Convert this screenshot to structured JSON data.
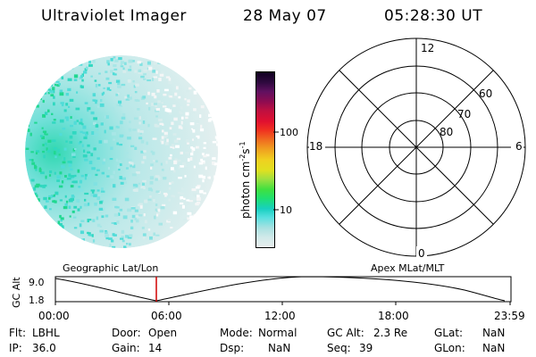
{
  "header": {
    "instrument": "Ultraviolet Imager",
    "date": "28 May 07",
    "time": "05:28:30 UT"
  },
  "colorbar": {
    "label": "photon cm",
    "label_exp": "-2",
    "label_unit": "s",
    "label_unit_exp": "-1",
    "tick_10": "10",
    "tick_100": "100",
    "colors": [
      "#e8eeee",
      "#cfe9e9",
      "#a9e1e1",
      "#58e0e0",
      "#18d0c0",
      "#20e070",
      "#40e040",
      "#a0e040",
      "#e0e020",
      "#f0d020",
      "#f0a020",
      "#f07020",
      "#f03020",
      "#e01030",
      "#c01040",
      "#900c50",
      "#601060",
      "#300a40",
      "#100020"
    ]
  },
  "polar_plot": {
    "labels": {
      "top": "12",
      "bottom": "0",
      "left": "18",
      "right": "6"
    },
    "ring_labels": [
      "80",
      "70",
      "60"
    ]
  },
  "timeline": {
    "axis_label": "GC Alt",
    "left_heading": "Geographic Lat/Lon",
    "right_heading": "Apex MLat/MLT",
    "y_ticks": [
      "9.0",
      "1.8"
    ],
    "x_ticks": [
      "00:00",
      "06:00",
      "12:00",
      "18:00",
      "23:59"
    ],
    "marker_color": "#d00000"
  },
  "status": {
    "flt_label": "Flt:",
    "flt_value": "LBHL",
    "ip_label": "IP:",
    "ip_value": "36.0",
    "door_label": "Door:",
    "door_value": "Open",
    "gain_label": "Gain:",
    "gain_value": "14",
    "mode_label": "Mode:",
    "mode_value": "Normal",
    "dsp_label": "Dsp:",
    "dsp_value": "NaN",
    "gcalt_label": "GC Alt:",
    "gcalt_value": "2.3 Re",
    "seq_label": "Seq:",
    "seq_value": "39",
    "glat_label": "GLat:",
    "glat_value": "NaN",
    "glon_label": "GLon:",
    "glon_value": "NaN"
  }
}
